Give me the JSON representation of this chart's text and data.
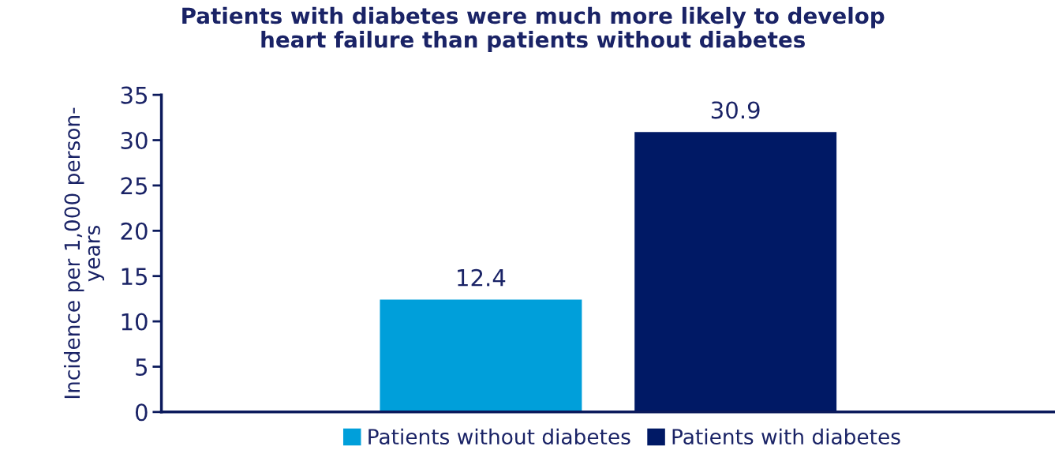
{
  "chart_data": {
    "type": "bar",
    "title": "Patients with diabetes were much more likely to develop\nheart failure than patients without diabetes",
    "ylabel": "Incidence per 1,000 person-\nyears",
    "categories": [
      null
    ],
    "series": [
      {
        "name": "Patients without diabetes",
        "color": "#009fda",
        "values": [
          12.4
        ]
      },
      {
        "name": "Patients with diabetes",
        "color": "#001965",
        "values": [
          30.9
        ]
      }
    ],
    "ylim": [
      0,
      35
    ],
    "yticks": [
      0,
      5,
      10,
      15,
      20,
      25,
      30,
      35
    ],
    "data_labels": true,
    "legend": "bottom",
    "grid": false
  }
}
